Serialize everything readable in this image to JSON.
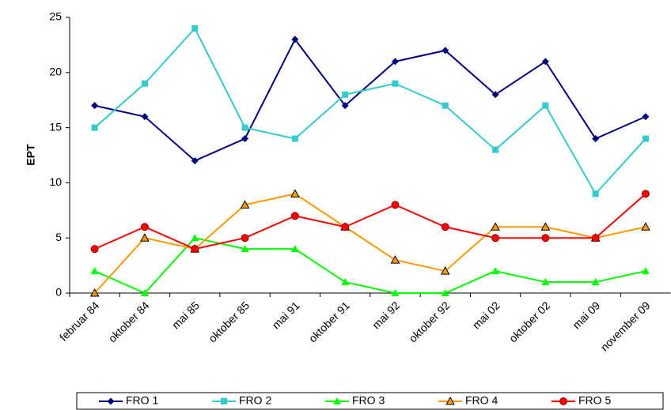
{
  "chart_data": {
    "type": "line",
    "y_label": "EPT",
    "categories": [
      "februar 84",
      "oktober 84",
      "mai 85",
      "oktober 85",
      "mai 91",
      "oktober 91",
      "mai 92",
      "oktober 92",
      "mai 02",
      "oktober 02",
      "mai 09",
      "november 09"
    ],
    "series": [
      {
        "name": "FRO 1",
        "color": "#000080",
        "marker": "diamond",
        "values": [
          17,
          16,
          12,
          14,
          23,
          17,
          21,
          22,
          18,
          21,
          14,
          16
        ]
      },
      {
        "name": "FRO 2",
        "color": "#33cccc",
        "marker": "square",
        "values": [
          15,
          19,
          24,
          15,
          14,
          18,
          19,
          17,
          13,
          17,
          9,
          14
        ]
      },
      {
        "name": "FRO 3",
        "color": "#00ff00",
        "marker": "triangle",
        "values": [
          2,
          0,
          5,
          4,
          4,
          1,
          0,
          0,
          2,
          1,
          1,
          2
        ]
      },
      {
        "name": "FRO 4",
        "color": "#ff9900",
        "marker": "triangle-outlined",
        "values": [
          0,
          5,
          4,
          8,
          9,
          6,
          3,
          2,
          6,
          6,
          5,
          6
        ]
      },
      {
        "name": "FRO 5",
        "color": "#ff0000",
        "marker": "circle",
        "values": [
          4,
          6,
          4,
          5,
          7,
          6,
          8,
          6,
          5,
          5,
          5,
          9
        ]
      }
    ],
    "ylim": [
      0,
      25
    ],
    "yticks": [
      0,
      5,
      10,
      15,
      20,
      25
    ],
    "grid": false,
    "legend": "bottom"
  }
}
